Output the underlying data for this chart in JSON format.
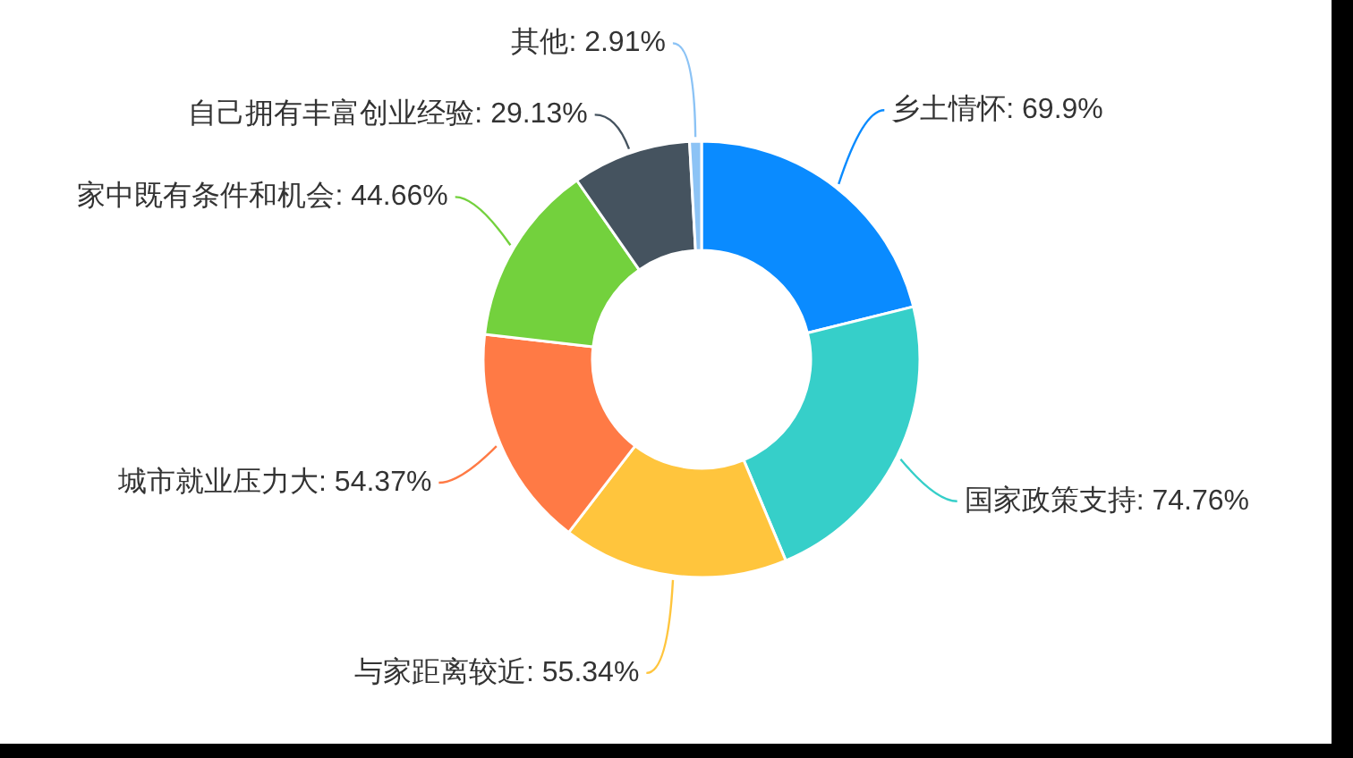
{
  "chart_data": {
    "type": "donut",
    "categories": [
      "乡土情怀",
      "国家政策支持",
      "与家距离较近",
      "城市就业压力大",
      "家中既有条件和机会",
      "自己拥有丰富创业经验",
      "其他"
    ],
    "values": [
      69.9,
      74.76,
      55.34,
      54.37,
      44.66,
      29.13,
      2.91
    ],
    "value_labels": [
      "69.9%",
      "74.76%",
      "55.34%",
      "54.37%",
      "44.66%",
      "29.13%",
      "2.91%"
    ],
    "colors": [
      "#0a8bff",
      "#36cfc9",
      "#ffc53d",
      "#ff7a45",
      "#73d13d",
      "#45535f",
      "#8cc3f5"
    ]
  }
}
